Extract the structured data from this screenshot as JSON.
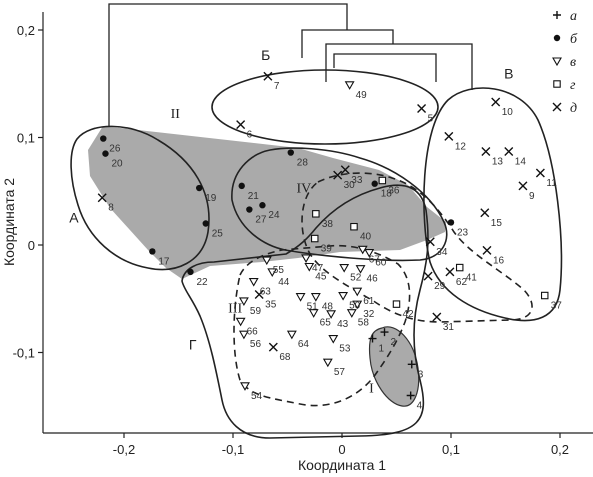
{
  "chart_data": {
    "type": "scatter",
    "xlabel": "Координата 1",
    "ylabel": "Координата 2",
    "xlim": [
      -0.27,
      0.235
    ],
    "ylim": [
      -0.18,
      0.225
    ],
    "x_ticks": [
      -0.2,
      -0.1,
      0,
      0.1,
      0.2
    ],
    "y_ticks": [
      -0.1,
      0,
      0.1,
      0.2
    ],
    "x_tick_labels": [
      "-0,2",
      "-0,1",
      "0",
      "0,1",
      "0,2"
    ],
    "y_tick_labels": [
      "-0,1",
      "0",
      "0,1",
      "0,2"
    ],
    "legend": [
      {
        "marker": "plus",
        "label": "а"
      },
      {
        "marker": "dot",
        "label": "б"
      },
      {
        "marker": "triangle",
        "label": "в"
      },
      {
        "marker": "square",
        "label": "г"
      },
      {
        "marker": "cross",
        "label": "д"
      }
    ],
    "legend_position": "top-right",
    "group_labels": [
      {
        "label": "А",
        "x": -0.246,
        "y": 0.021
      },
      {
        "label": "Б",
        "x": -0.07,
        "y": 0.172
      },
      {
        "label": "В",
        "x": 0.153,
        "y": 0.155
      },
      {
        "label": "Г",
        "x": -0.137,
        "y": -0.097
      },
      {
        "label": "I",
        "x": 0.027,
        "y": -0.137
      },
      {
        "label": "II",
        "x": -0.153,
        "y": 0.118
      },
      {
        "label": "III",
        "x": -0.098,
        "y": -0.063
      },
      {
        "label": "IV",
        "x": -0.035,
        "y": 0.049
      }
    ],
    "points": [
      {
        "id": "1",
        "type": "plus",
        "x": 0.028,
        "y": -0.087
      },
      {
        "id": "2",
        "type": "plus",
        "x": 0.039,
        "y": -0.081
      },
      {
        "id": "3",
        "type": "plus",
        "x": 0.064,
        "y": -0.111
      },
      {
        "id": "4",
        "type": "plus",
        "x": 0.063,
        "y": -0.14
      },
      {
        "id": "5",
        "type": "cross",
        "x": 0.073,
        "y": 0.127
      },
      {
        "id": "6",
        "type": "cross",
        "x": -0.093,
        "y": 0.112
      },
      {
        "id": "7",
        "type": "cross",
        "x": -0.068,
        "y": 0.157
      },
      {
        "id": "8",
        "type": "cross",
        "x": -0.22,
        "y": 0.044
      },
      {
        "id": "9",
        "type": "cross",
        "x": 0.166,
        "y": 0.055
      },
      {
        "id": "10",
        "type": "cross",
        "x": 0.141,
        "y": 0.133
      },
      {
        "id": "11",
        "type": "cross",
        "x": 0.182,
        "y": 0.067
      },
      {
        "id": "12",
        "type": "cross",
        "x": 0.098,
        "y": 0.101
      },
      {
        "id": "13",
        "type": "cross",
        "x": 0.132,
        "y": 0.087
      },
      {
        "id": "14",
        "type": "cross",
        "x": 0.153,
        "y": 0.087
      },
      {
        "id": "15",
        "type": "cross",
        "x": 0.131,
        "y": 0.03
      },
      {
        "id": "16",
        "type": "cross",
        "x": 0.133,
        "y": -0.005
      },
      {
        "id": "17",
        "type": "dot",
        "x": -0.174,
        "y": -0.006
      },
      {
        "id": "18",
        "type": "dot",
        "x": 0.03,
        "y": 0.057
      },
      {
        "id": "19",
        "type": "dot",
        "x": -0.131,
        "y": 0.053
      },
      {
        "id": "20",
        "type": "dot",
        "x": -0.217,
        "y": 0.085
      },
      {
        "id": "21",
        "type": "dot",
        "x": -0.092,
        "y": 0.055
      },
      {
        "id": "22",
        "type": "dot",
        "x": -0.139,
        "y": -0.025
      },
      {
        "id": "23",
        "type": "dot",
        "x": 0.1,
        "y": 0.021
      },
      {
        "id": "24",
        "type": "dot",
        "x": -0.073,
        "y": 0.037
      },
      {
        "id": "25",
        "type": "dot",
        "x": -0.125,
        "y": 0.02
      },
      {
        "id": "26",
        "type": "dot",
        "x": -0.219,
        "y": 0.099
      },
      {
        "id": "27",
        "type": "dot",
        "x": -0.085,
        "y": 0.033
      },
      {
        "id": "28",
        "type": "dot",
        "x": -0.047,
        "y": 0.086
      },
      {
        "id": "29",
        "type": "cross",
        "x": 0.079,
        "y": -0.029
      },
      {
        "id": "30",
        "type": "cross",
        "x": -0.004,
        "y": 0.065
      },
      {
        "id": "31",
        "type": "cross",
        "x": 0.087,
        "y": -0.067
      },
      {
        "id": "32",
        "type": "triangle",
        "x": 0.014,
        "y": -0.055
      },
      {
        "id": "33",
        "type": "cross",
        "x": 0.003,
        "y": 0.07
      },
      {
        "id": "34",
        "type": "cross",
        "x": 0.081,
        "y": 0.003
      },
      {
        "id": "35",
        "type": "cross",
        "x": -0.076,
        "y": -0.046
      },
      {
        "id": "36",
        "type": "square",
        "x": 0.037,
        "y": 0.06
      },
      {
        "id": "37",
        "type": "square",
        "x": 0.186,
        "y": -0.047
      },
      {
        "id": "38",
        "type": "square",
        "x": -0.024,
        "y": 0.029
      },
      {
        "id": "39",
        "type": "square",
        "x": -0.025,
        "y": 0.006
      },
      {
        "id": "40",
        "type": "square",
        "x": 0.011,
        "y": 0.017
      },
      {
        "id": "41",
        "type": "square",
        "x": 0.108,
        "y": -0.021
      },
      {
        "id": "42",
        "type": "square",
        "x": 0.05,
        "y": -0.055
      },
      {
        "id": "43",
        "type": "triangle",
        "x": -0.01,
        "y": -0.064
      },
      {
        "id": "44",
        "type": "triangle",
        "x": -0.064,
        "y": -0.025
      },
      {
        "id": "45",
        "type": "triangle",
        "x": -0.03,
        "y": -0.02
      },
      {
        "id": "46",
        "type": "triangle",
        "x": 0.017,
        "y": -0.022
      },
      {
        "id": "47",
        "type": "triangle",
        "x": -0.033,
        "y": -0.012
      },
      {
        "id": "48",
        "type": "triangle",
        "x": -0.024,
        "y": -0.048
      },
      {
        "id": "49",
        "type": "triangle",
        "x": 0.007,
        "y": 0.149
      },
      {
        "id": "50",
        "type": "triangle",
        "x": 0.001,
        "y": -0.047
      },
      {
        "id": "51",
        "type": "triangle",
        "x": -0.038,
        "y": -0.048
      },
      {
        "id": "52",
        "type": "triangle",
        "x": 0.002,
        "y": -0.021
      },
      {
        "id": "53",
        "type": "triangle",
        "x": -0.008,
        "y": -0.087
      },
      {
        "id": "54",
        "type": "triangle",
        "x": -0.089,
        "y": -0.131
      },
      {
        "id": "55",
        "type": "triangle",
        "x": -0.069,
        "y": -0.014
      },
      {
        "id": "56",
        "type": "triangle",
        "x": -0.09,
        "y": -0.083
      },
      {
        "id": "57",
        "type": "triangle",
        "x": -0.013,
        "y": -0.109
      },
      {
        "id": "58",
        "type": "triangle",
        "x": 0.009,
        "y": -0.063
      },
      {
        "id": "59",
        "type": "triangle",
        "x": -0.09,
        "y": -0.052
      },
      {
        "id": "60",
        "type": "triangle",
        "x": 0.025,
        "y": -0.007
      },
      {
        "id": "61",
        "type": "triangle",
        "x": 0.014,
        "y": -0.043
      },
      {
        "id": "62",
        "type": "cross",
        "x": 0.099,
        "y": -0.025
      },
      {
        "id": "63",
        "type": "triangle",
        "x": -0.081,
        "y": -0.034
      },
      {
        "id": "64",
        "type": "triangle",
        "x": -0.046,
        "y": -0.083
      },
      {
        "id": "65",
        "type": "triangle",
        "x": -0.026,
        "y": -0.063
      },
      {
        "id": "66",
        "type": "triangle",
        "x": -0.093,
        "y": -0.071
      },
      {
        "id": "67",
        "type": "triangle",
        "x": 0.019,
        "y": -0.004
      },
      {
        "id": "68",
        "type": "cross",
        "x": -0.063,
        "y": -0.095
      }
    ]
  }
}
